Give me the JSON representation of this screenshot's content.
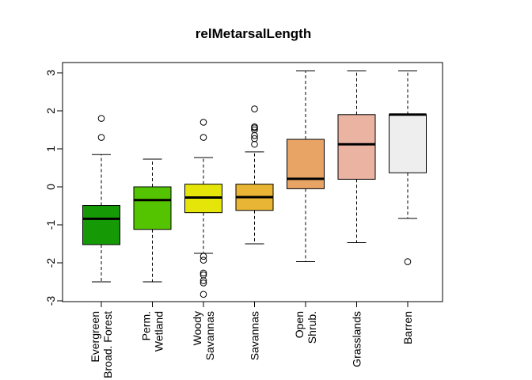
{
  "chart_data": {
    "type": "boxplot",
    "title": "relMetarsalLength",
    "xlabel": "",
    "ylabel": "",
    "ylim": [
      -3.05,
      3.3
    ],
    "yticks": [
      -3,
      -2,
      -1,
      0,
      1,
      2,
      3
    ],
    "ytick_labels": [
      "-3",
      "-2",
      "-1",
      "0",
      "1",
      "2",
      "3"
    ],
    "grid": false,
    "legend": "none",
    "categories": [
      {
        "label_lines": [
          "Evergreen",
          "Broad. Forest"
        ],
        "color": "#159a06",
        "whisker_low": -2.5,
        "q1": -1.52,
        "median": -0.84,
        "q3": -0.49,
        "whisker_high": 0.85,
        "outliers": [
          1.3,
          1.8
        ]
      },
      {
        "label_lines": [
          "Perm.",
          "Wetland"
        ],
        "color": "#55c400",
        "whisker_low": -2.5,
        "q1": -1.12,
        "median": -0.35,
        "q3": 0.0,
        "whisker_high": 0.73,
        "outliers": []
      },
      {
        "label_lines": [
          "Woody",
          "Savannas"
        ],
        "color": "#e5e50a",
        "whisker_low": -1.75,
        "q1": -0.68,
        "median": -0.28,
        "q3": 0.07,
        "whisker_high": 0.77,
        "outliers": [
          1.3,
          1.7,
          -1.83,
          -1.93,
          -2.27,
          -2.32,
          -2.47,
          -2.53,
          -2.83
        ]
      },
      {
        "label_lines": [
          "Savannas"
        ],
        "color": "#e8b535",
        "whisker_low": -1.5,
        "q1": -0.62,
        "median": -0.27,
        "q3": 0.07,
        "whisker_high": 0.92,
        "outliers": [
          1.12,
          1.27,
          1.35,
          1.5,
          1.55,
          1.58,
          2.05
        ]
      },
      {
        "label_lines": [
          "Open",
          "Shrub."
        ],
        "color": "#e8a465",
        "whisker_low": -1.97,
        "q1": -0.05,
        "median": 0.21,
        "q3": 1.25,
        "whisker_high": 3.05,
        "outliers": []
      },
      {
        "label_lines": [
          "Grasslands"
        ],
        "color": "#ebb4a2",
        "whisker_low": -1.47,
        "q1": 0.2,
        "median": 1.12,
        "q3": 1.9,
        "whisker_high": 3.05,
        "outliers": []
      },
      {
        "label_lines": [
          "Barren"
        ],
        "color": "#eeeeee",
        "whisker_low": -0.83,
        "q1": 0.37,
        "median": 1.9,
        "q3": 1.9,
        "whisker_high": 3.05,
        "outliers": [
          -1.97
        ]
      }
    ]
  }
}
